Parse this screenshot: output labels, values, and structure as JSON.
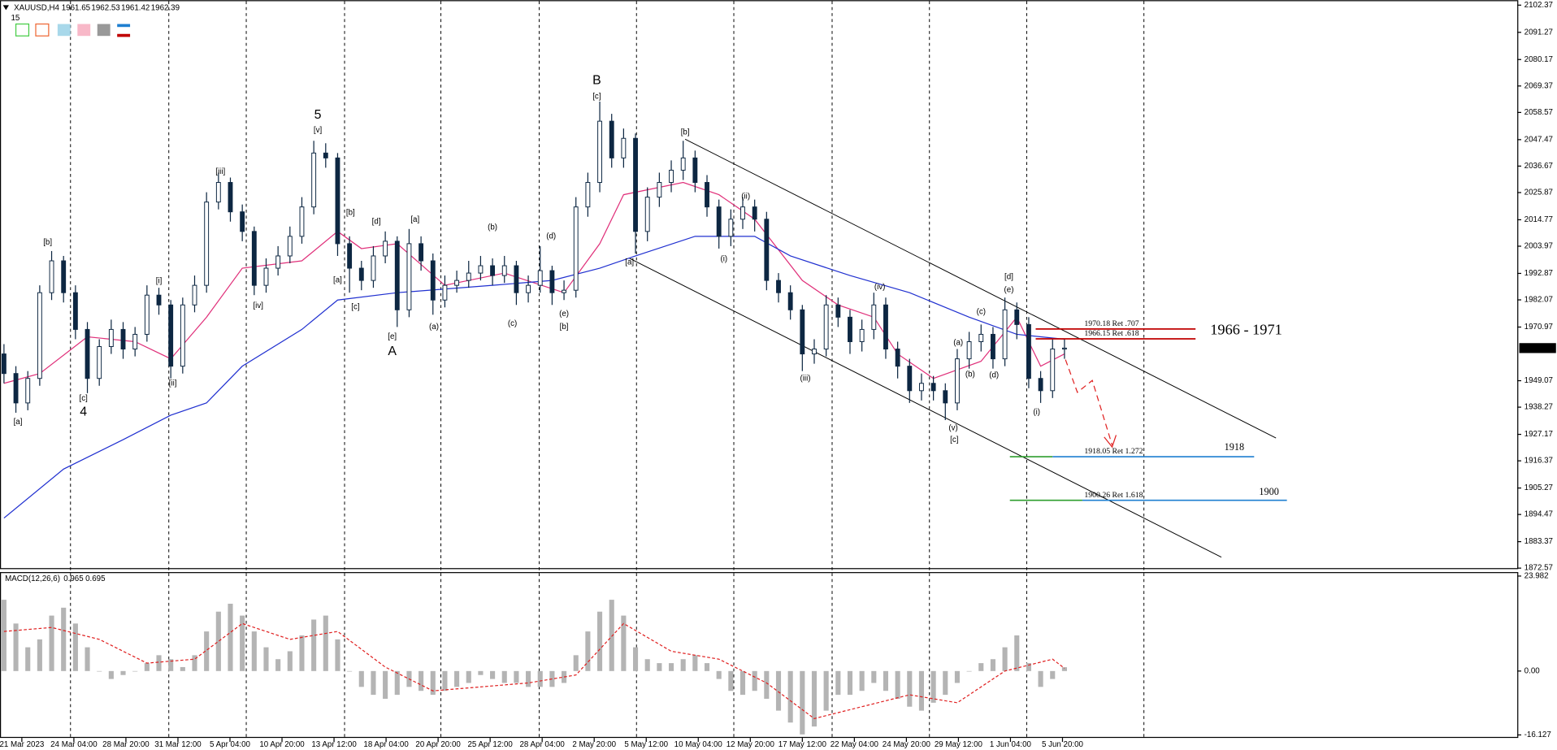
{
  "chart_data": [
    {
      "type": "candlestick",
      "title": "XAUUSD,H4",
      "header_values": [
        1961.65,
        1962.53,
        1961.42,
        1962.39
      ],
      "period_label": "15",
      "ylim": [
        1872.57,
        2102.37
      ],
      "yticks": [
        2102.37,
        2091.27,
        2080.17,
        2069.37,
        2058.57,
        2047.47,
        2036.67,
        2025.87,
        2014.77,
        2003.97,
        1992.87,
        1982.07,
        1970.97,
        1949.07,
        1938.27,
        1927.17,
        1916.37,
        1905.27,
        1894.47,
        1883.37,
        1872.57
      ],
      "grid": false,
      "xtick_labels": [
        "21 Mar 2023",
        "24 Mar 04:00",
        "28 Mar 20:00",
        "31 Mar 12:00",
        "5 Apr 04:00",
        "10 Apr 20:00",
        "13 Apr 12:00",
        "18 Apr 04:00",
        "20 Apr 20:00",
        "25 Apr 12:00",
        "28 Apr 04:00",
        "2 May 20:00",
        "5 May 12:00",
        "10 May 04:00",
        "12 May 20:00",
        "17 May 12:00",
        "22 May 04:00",
        "24 May 20:00",
        "29 May 12:00",
        "1 Jun 04:00",
        "5 Jun 20:00"
      ],
      "candle_color": "#0d2742",
      "open": [
        1960,
        1952,
        1940,
        1950,
        1985,
        1998,
        1985,
        1970,
        1950,
        1963,
        1970,
        1962,
        1968,
        1984,
        1980,
        1955,
        1980,
        1988,
        2022,
        2030,
        2018,
        2010,
        1988,
        1995,
        2000,
        2008,
        2020,
        2042,
        2040,
        2005,
        1995,
        1990,
        2000,
        2006,
        1978,
        2005,
        1998,
        1982,
        1988,
        1990,
        1993,
        1996,
        1992,
        1996,
        1985,
        1988,
        1994,
        1985,
        1986,
        2020,
        2030,
        2055,
        2040,
        2048,
        2010,
        2024,
        2030,
        2035,
        2040,
        2030,
        2020,
        2008,
        2015,
        2020,
        2015,
        1990,
        1985,
        1978,
        1960,
        1962,
        1980,
        1975,
        1965,
        1970,
        1980,
        1962,
        1955,
        1945,
        1948,
        1945,
        1940,
        1958,
        1965,
        1968,
        1958,
        1978,
        1972,
        1950,
        1945,
        1962
      ],
      "high": [
        1964,
        1955,
        1953,
        1988,
        2002,
        2000,
        1988,
        1973,
        1966,
        1974,
        1973,
        1971,
        1988,
        1987,
        1982,
        1983,
        1992,
        2026,
        2034,
        2032,
        2021,
        2012,
        1999,
        2004,
        2012,
        2024,
        2047,
        2046,
        2042,
        2008,
        1998,
        2004,
        2010,
        2008,
        2011,
        2008,
        2001,
        1992,
        1994,
        1998,
        2000,
        1999,
        2000,
        1998,
        1992,
        2004,
        1996,
        1990,
        2024,
        2034,
        2063,
        2058,
        2052,
        2050,
        2028,
        2034,
        2039,
        2047,
        2043,
        2033,
        2023,
        2019,
        2024,
        2023,
        2018,
        1993,
        1988,
        1980,
        1966,
        1984,
        1983,
        1978,
        1974,
        1985,
        1983,
        1965,
        1958,
        1952,
        1951,
        1948,
        1962,
        1969,
        1972,
        1971,
        1983,
        1981,
        1975,
        1953,
        1966,
        1966
      ],
      "low": [
        1948,
        1936,
        1937,
        1947,
        1982,
        1981,
        1966,
        1944,
        1947,
        1960,
        1958,
        1959,
        1965,
        1976,
        1950,
        1952,
        1977,
        1985,
        2019,
        2014,
        2006,
        1984,
        1985,
        1992,
        1997,
        2005,
        2017,
        2036,
        2000,
        1985,
        1986,
        1987,
        1997,
        1971,
        1975,
        1994,
        1976,
        1979,
        1985,
        1987,
        1990,
        1988,
        1989,
        1980,
        1981,
        1985,
        1980,
        1982,
        1983,
        2016,
        2026,
        2036,
        2036,
        2001,
        2006,
        2020,
        2026,
        2031,
        2026,
        2016,
        2003,
        2004,
        2011,
        2010,
        1986,
        1981,
        1974,
        1953,
        1956,
        1959,
        1971,
        1960,
        1961,
        1966,
        1958,
        1950,
        1940,
        1941,
        1941,
        1933,
        1937,
        1954,
        1961,
        1954,
        1955,
        1966,
        1946,
        1940,
        1942,
        1958
      ],
      "close": [
        1952,
        1940,
        1950,
        1985,
        1998,
        1985,
        1970,
        1950,
        1963,
        1970,
        1962,
        1968,
        1984,
        1980,
        1955,
        1980,
        1988,
        2022,
        2030,
        2018,
        2010,
        1988,
        1995,
        2000,
        2008,
        2020,
        2042,
        2040,
        2005,
        1995,
        1990,
        2000,
        2006,
        1978,
        2005,
        1998,
        1982,
        1988,
        1990,
        1993,
        1996,
        1992,
        1996,
        1985,
        1988,
        1994,
        1985,
        1986,
        2020,
        2030,
        2055,
        2040,
        2048,
        2010,
        2024,
        2030,
        2035,
        2040,
        2030,
        2020,
        2008,
        2015,
        2020,
        2015,
        1990,
        1985,
        1978,
        1960,
        1962,
        1980,
        1975,
        1965,
        1970,
        1980,
        1962,
        1955,
        1945,
        1948,
        1945,
        1940,
        1958,
        1965,
        1968,
        1958,
        1978,
        1972,
        1950,
        1945,
        1962,
        1962.39
      ],
      "series": [
        {
          "color": "#e0307a",
          "x": [
            0,
            3,
            7,
            11,
            14,
            17,
            20,
            25,
            28,
            30,
            33,
            37,
            42,
            47,
            50,
            52,
            57,
            60,
            63,
            67,
            70,
            73,
            75,
            78,
            82,
            85,
            87,
            89
          ],
          "values": [
            1948,
            1952,
            1967,
            1965,
            1958,
            1975,
            1995,
            1998,
            2010,
            2003,
            2005,
            1988,
            1993,
            1985,
            2005,
            2025,
            2030,
            2025,
            2015,
            1990,
            1980,
            1975,
            1960,
            1950,
            1957,
            1975,
            1955,
            1960
          ]
        },
        {
          "color": "#2030d0",
          "x": [
            0,
            5,
            10,
            14,
            17,
            20,
            25,
            28,
            33,
            41,
            46,
            50,
            53,
            58,
            63,
            66,
            71,
            76,
            81,
            85,
            89
          ],
          "values": [
            1893,
            1913,
            1925,
            1935,
            1940,
            1955,
            1970,
            1982,
            1985,
            1988,
            1990,
            1995,
            2000,
            2008,
            2008,
            2000,
            1992,
            1985,
            1975,
            1968,
            1966
          ]
        }
      ],
      "last_price": 1962.39,
      "levels": [
        {
          "value": 1970.18,
          "label": "1970.18 Ret .707",
          "color": "#e03030"
        },
        {
          "value": 1966.15,
          "label": "1966.15 Ret .618",
          "color": "#e03030"
        },
        {
          "value": 1918.05,
          "label": "1918.05 Ret 1.272",
          "color": "#2e9e2e"
        },
        {
          "value": 1900.26,
          "label": "1900.26 Ret 1.618",
          "color": "#2e9e2e"
        }
      ],
      "zone_labels": [
        "1966 - 1971",
        "1918",
        "1900"
      ],
      "annotations": [
        "[a]",
        "[b]",
        "4",
        "[c]",
        "[i]",
        "[ii]",
        "[iii]",
        "[iv]",
        "5",
        "[v]",
        "[a]",
        "[b]",
        "[c]",
        "[d]",
        "[e]",
        "A",
        "[a]",
        "(a)",
        "(b)",
        "(c)",
        "(d)",
        "(e)",
        "[b]",
        "B",
        "[c]",
        "[a]",
        "[b]",
        "(i)",
        "(ii)",
        "(iii)",
        "(iv)",
        "(v)",
        "[c]",
        "(a)",
        "(b)",
        "(c)",
        "(d)",
        "(e)",
        "[d]",
        "(i)"
      ]
    },
    {
      "type": "bar",
      "title": "MACD(12,26,6)",
      "header_values": [
        0.965,
        0.695
      ],
      "ylim": [
        -16.127,
        23.982
      ],
      "yticks": [
        23.982,
        {
          "value": 0,
          "label": "0.00"
        },
        -16.127
      ],
      "color": "#b4b4b4",
      "values": [
        18,
        12,
        6,
        8,
        14,
        16,
        12,
        6,
        0,
        -2,
        -1,
        0,
        2,
        4,
        3,
        1,
        4,
        10,
        15,
        17,
        14,
        10,
        6,
        3,
        5,
        9,
        13,
        14,
        8,
        0,
        -4,
        -6,
        -7,
        -6,
        -4,
        -5,
        -6,
        -5,
        -4,
        -3,
        -1,
        -2,
        -3,
        -3,
        -4,
        -4,
        -4,
        -3,
        4,
        10,
        15,
        18,
        14,
        6,
        3,
        2,
        2,
        3,
        4,
        2,
        -2,
        -5,
        -6,
        -5,
        -7,
        -10,
        -13,
        -16,
        -14,
        -10,
        -6,
        -6,
        -5,
        -3,
        -5,
        -7,
        -9,
        -10,
        -8,
        -6,
        -3,
        0,
        2,
        3,
        6,
        9,
        2,
        -4,
        -2,
        0.965
      ],
      "signal": {
        "color": "#e02020",
        "x": [
          0,
          4,
          8,
          12,
          16,
          20,
          24,
          28,
          32,
          36,
          40,
          44,
          48,
          52,
          56,
          60,
          64,
          68,
          72,
          76,
          80,
          84,
          88,
          89
        ],
        "values": [
          10,
          11,
          8,
          2,
          3,
          12,
          8,
          10,
          1,
          -5,
          -4,
          -3,
          -1,
          12,
          5,
          3,
          -3,
          -12,
          -9,
          -6,
          -8,
          0,
          3,
          0.695
        ]
      }
    }
  ]
}
